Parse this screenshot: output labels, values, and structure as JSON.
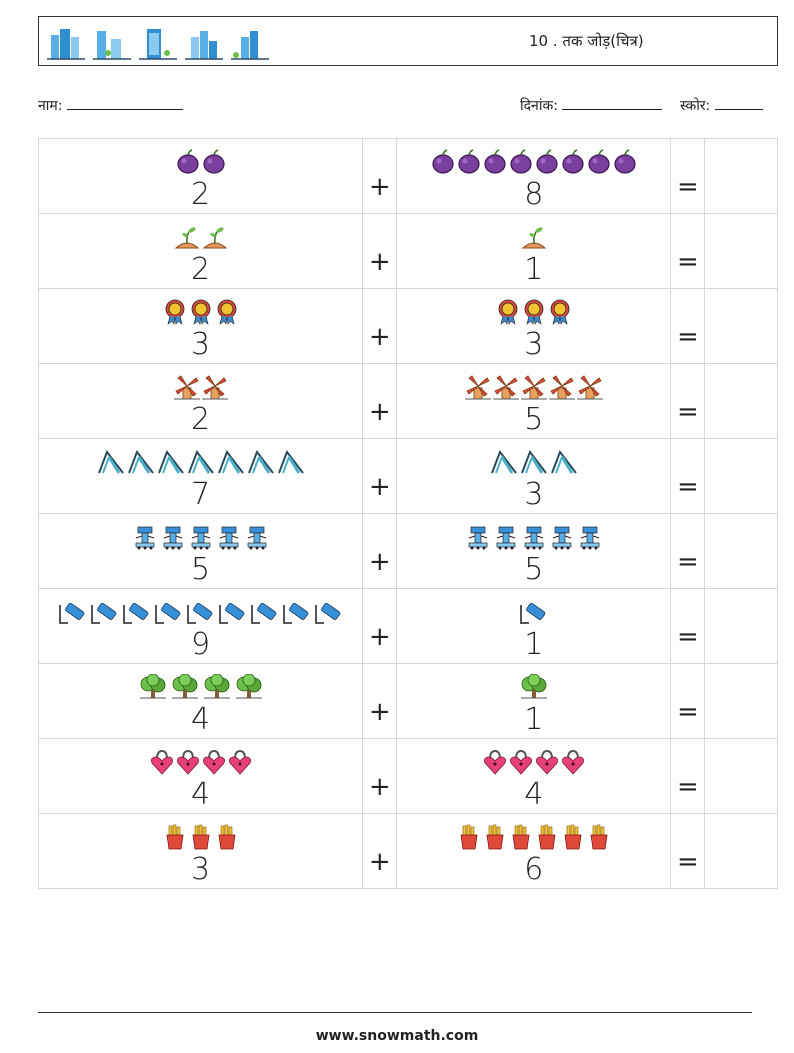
{
  "header": {
    "title": "10 . तक जोड़(चित्र)",
    "logos": [
      "building-icon",
      "building-tree-icon",
      "office-tower-icon",
      "city-icon",
      "skyline-icon"
    ]
  },
  "info": {
    "name_label": "नाम:",
    "date_label": "दिनांक:",
    "score_label": "स्कोर:"
  },
  "operators": {
    "plus": "+",
    "equals": "="
  },
  "rows": [
    {
      "icon": "plum",
      "a": "2",
      "b": "8"
    },
    {
      "icon": "sprout",
      "a": "2",
      "b": "1"
    },
    {
      "icon": "medal",
      "a": "3",
      "b": "3"
    },
    {
      "icon": "windmill",
      "a": "2",
      "b": "5"
    },
    {
      "icon": "slide",
      "a": "7",
      "b": "3"
    },
    {
      "icon": "robot",
      "a": "5",
      "b": "5"
    },
    {
      "icon": "marker",
      "a": "9",
      "b": "1"
    },
    {
      "icon": "tree",
      "a": "4",
      "b": "1"
    },
    {
      "icon": "heart-lock",
      "a": "4",
      "b": "4"
    },
    {
      "icon": "fries",
      "a": "3",
      "b": "6"
    }
  ],
  "footer": {
    "url": "www.snowmath.com"
  }
}
